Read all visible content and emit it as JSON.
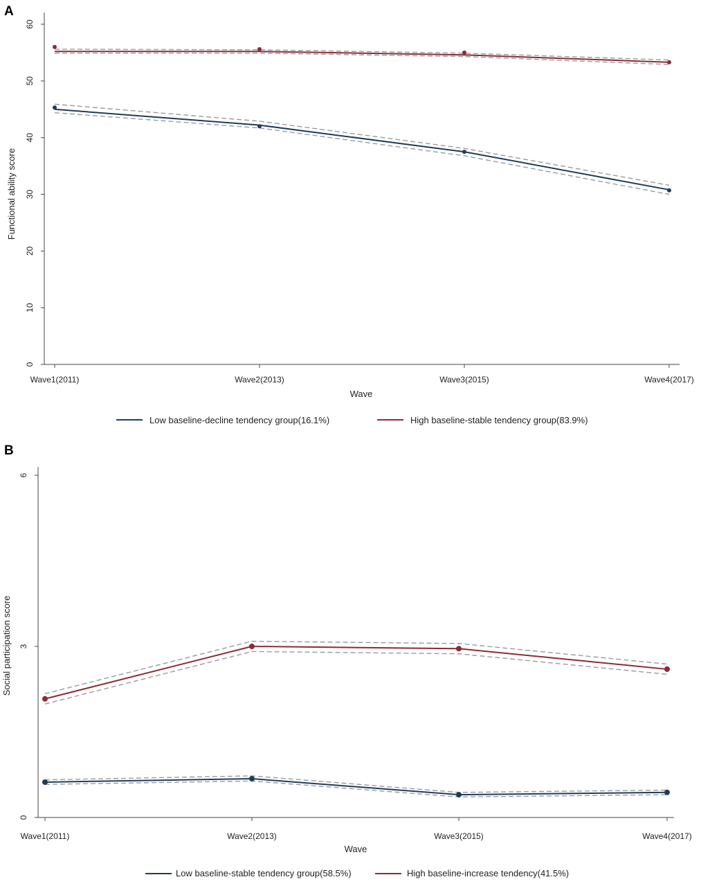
{
  "colors": {
    "low": "#1f3b5c",
    "high": "#8b2b35",
    "ci": "#9a9aa0",
    "axis": "#444444"
  },
  "chart_data": [
    {
      "panel_label": "A",
      "type": "line",
      "categories": [
        "Wave1(2011)",
        "Wave2(2013)",
        "Wave3(2015)",
        "Wave4(2017)"
      ],
      "xlabel": "Wave",
      "ylabel": "Functional ability score",
      "ylim": [
        0,
        60
      ],
      "yticks": [
        0,
        10,
        20,
        30,
        40,
        50,
        60
      ],
      "series": [
        {
          "name": "Low baseline-decline tendency group(16.1%)",
          "color_key": "low",
          "fitted": [
            45.0,
            42.2,
            37.5,
            30.8
          ],
          "ci_upper": [
            45.9,
            42.9,
            38.1,
            31.6
          ],
          "ci_lower": [
            44.4,
            41.7,
            36.8,
            30.0
          ],
          "observed": [
            45.3,
            42.0,
            37.5,
            30.7
          ]
        },
        {
          "name": "High baseline-stable tendency group(83.9%)",
          "color_key": "high",
          "fitted": [
            55.2,
            55.2,
            54.6,
            53.3
          ],
          "ci_upper": [
            55.6,
            55.5,
            54.9,
            53.7
          ],
          "ci_lower": [
            54.9,
            54.9,
            54.3,
            52.9
          ],
          "observed": [
            56.0,
            55.6,
            55.0,
            53.3
          ]
        }
      ]
    },
    {
      "panel_label": "B",
      "type": "line",
      "categories": [
        "Wave1(2011)",
        "Wave2(2013)",
        "Wave3(2015)",
        "Wave4(2017)"
      ],
      "xlabel": "Wave",
      "ylabel": "Social participation score",
      "ylim": [
        0,
        6
      ],
      "yticks": [
        0,
        3,
        6
      ],
      "series": [
        {
          "name": "Low baseline-stable tendency group(58.5%)",
          "color_key": "low",
          "fitted": [
            0.62,
            0.68,
            0.4,
            0.44
          ],
          "ci_upper": [
            0.66,
            0.73,
            0.44,
            0.48
          ],
          "ci_lower": [
            0.58,
            0.64,
            0.36,
            0.4
          ],
          "observed": [
            0.62,
            0.68,
            0.4,
            0.44
          ]
        },
        {
          "name": "High baseline-increase tendency(41.5%)",
          "color_key": "high",
          "fitted": [
            2.08,
            3.0,
            2.96,
            2.6
          ],
          "ci_upper": [
            2.17,
            3.09,
            3.05,
            2.69
          ],
          "ci_lower": [
            1.99,
            2.91,
            2.87,
            2.51
          ],
          "observed": [
            2.08,
            3.0,
            2.96,
            2.6
          ]
        }
      ]
    }
  ]
}
